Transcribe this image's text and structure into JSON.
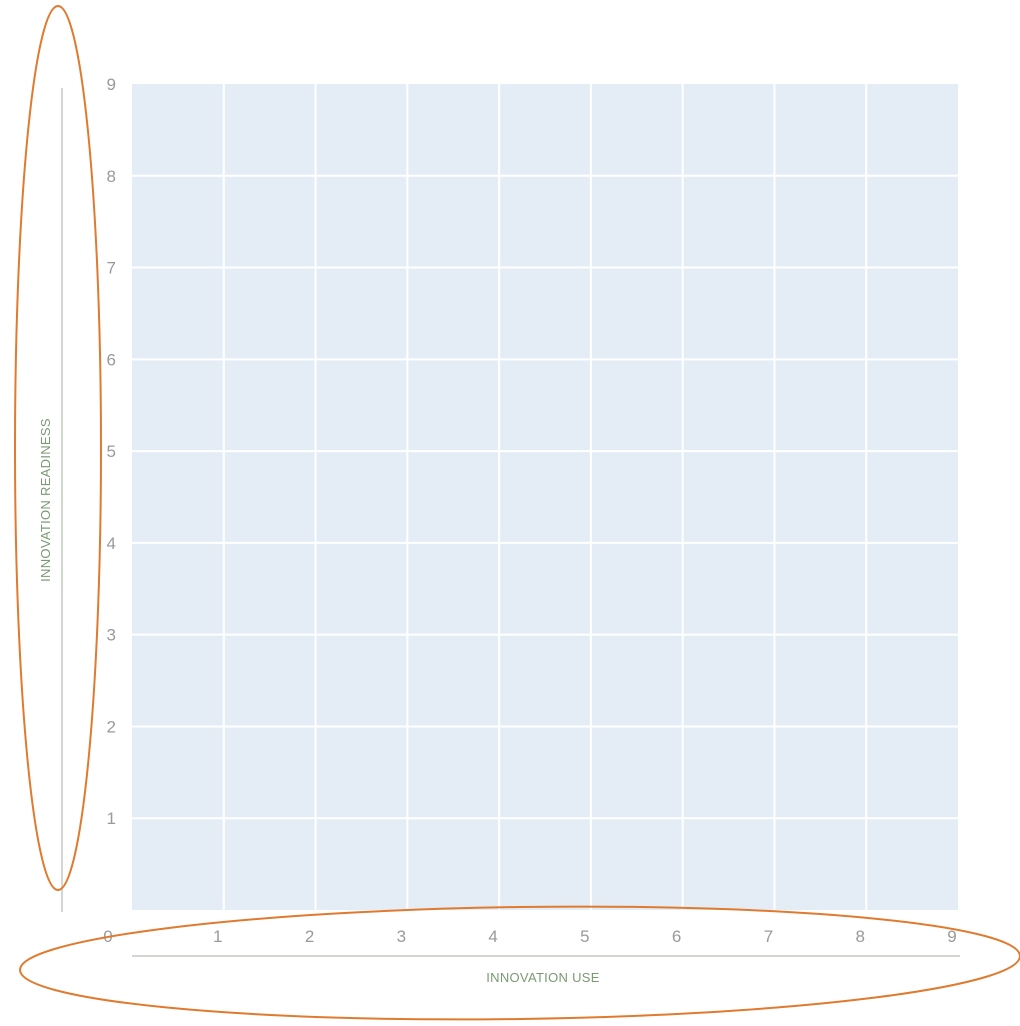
{
  "chart_data": {
    "type": "scatter",
    "title": "",
    "xlabel": "INNOVATION USE",
    "ylabel": "INNOVATION READINESS",
    "xlim": [
      0,
      9
    ],
    "ylim": [
      0,
      9
    ],
    "x_ticks": [
      "0",
      "1",
      "2",
      "3",
      "4",
      "5",
      "6",
      "7",
      "8",
      "9"
    ],
    "y_ticks": [
      "1",
      "2",
      "3",
      "4",
      "5",
      "6",
      "7",
      "8",
      "9"
    ],
    "grid": true,
    "series": [],
    "annotations": [
      {
        "type": "ellipse",
        "target": "y-axis"
      },
      {
        "type": "ellipse",
        "target": "x-axis"
      }
    ]
  },
  "colors": {
    "plot_background": "#e4edf6",
    "grid_line": "#ffffff",
    "tick_text": "#9a9a9a",
    "axis_title": "#7a9a74",
    "axis_rule": "#d2d6d0",
    "annotation": "#e07a2f"
  }
}
